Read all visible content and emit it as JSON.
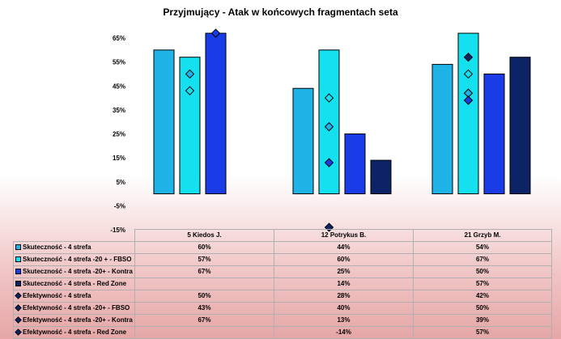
{
  "chart_data": {
    "type": "bar",
    "title": "Przyjmujący - Atak w końcowych fragmentach seta",
    "categories": [
      "5 Kiedos J.",
      "12 Potrykus B.",
      "21 Grzyb M."
    ],
    "ylim": [
      -15,
      70
    ],
    "yticks": [
      "65%",
      "55%",
      "45%",
      "35%",
      "25%",
      "15%",
      "5%",
      "-5%",
      "-15%"
    ],
    "ytick_values": [
      65,
      55,
      45,
      35,
      25,
      15,
      5,
      -5,
      -15
    ],
    "grid": false,
    "legend": "table",
    "bar_series": [
      {
        "name": "Skuteczność - 4 strefa",
        "values": [
          60,
          44,
          54
        ],
        "labels": [
          "60%",
          "44%",
          "54%"
        ],
        "color": "#1fb3e8"
      },
      {
        "name": "Skuteczność - 4 strefa -20 + - FBSO",
        "values": [
          57,
          60,
          67
        ],
        "labels": [
          "57%",
          "60%",
          "67%"
        ],
        "color": "#14e0f0"
      },
      {
        "name": "Skuteczność - 4 strefa -20+ - Kontra",
        "values": [
          67,
          25,
          50
        ],
        "labels": [
          "67%",
          "25%",
          "50%"
        ],
        "color": "#1a3ce6"
      },
      {
        "name": "Skuteczność - 4 strefa - Red Zone",
        "values": [
          null,
          14,
          57
        ],
        "labels": [
          "",
          "14%",
          "57%"
        ],
        "color": "#0c2466"
      }
    ],
    "marker_series": [
      {
        "name": "Efektywność - 4 strefa",
        "values": [
          50,
          28,
          42
        ],
        "labels": [
          "50%",
          "28%",
          "42%"
        ],
        "color": "#1fb3e8"
      },
      {
        "name": "Efektywność - 4 strefa -20+ - FBSO",
        "values": [
          43,
          40,
          50
        ],
        "labels": [
          "43%",
          "40%",
          "50%"
        ],
        "color": "#14e0f0"
      },
      {
        "name": "Efektywność - 4 strefa -20+ - Kontra",
        "values": [
          67,
          13,
          39
        ],
        "labels": [
          "67%",
          "13%",
          "39%"
        ],
        "color": "#1a3ce6"
      },
      {
        "name": "Efektywność - 4 strefa - Red Zone",
        "values": [
          null,
          -14,
          57
        ],
        "labels": [
          "",
          "-14%",
          "57%"
        ],
        "color": "#0c2466"
      }
    ]
  }
}
